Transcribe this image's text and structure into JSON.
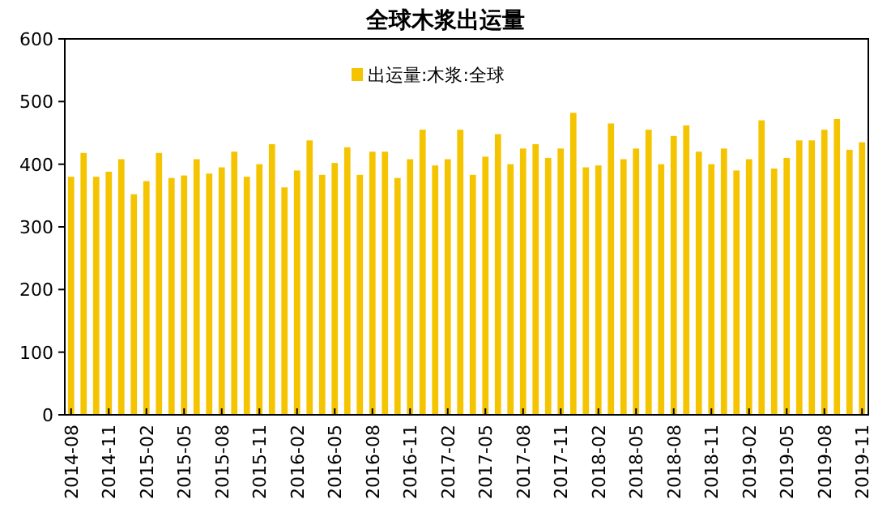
{
  "chart_data": {
    "type": "bar",
    "title": "全球木浆出运量",
    "categories": [
      "2014-08",
      null,
      null,
      "2014-11",
      null,
      null,
      "2015-02",
      null,
      null,
      "2015-05",
      null,
      null,
      "2015-08",
      null,
      null,
      "2015-11",
      null,
      null,
      "2016-02",
      null,
      null,
      "2016-05",
      null,
      null,
      "2016-08",
      null,
      null,
      "2016-11",
      null,
      null,
      "2017-02",
      null,
      null,
      "2017-05",
      null,
      null,
      "2017-08",
      null,
      null,
      "2017-11",
      null,
      null,
      "2018-02",
      null,
      null,
      "2018-05",
      null,
      null,
      "2018-08",
      null,
      null,
      "2018-11",
      null,
      null,
      "2019-02",
      null,
      null,
      "2019-05",
      null,
      null,
      "2019-08",
      null,
      null,
      "2019-11"
    ],
    "series": [
      {
        "name": "出运量:木浆:全球",
        "color": "#f5c400",
        "values": [
          380,
          418,
          380,
          388,
          408,
          352,
          373,
          418,
          378,
          382,
          408,
          385,
          395,
          420,
          380,
          400,
          432,
          363,
          390,
          438,
          383,
          402,
          427,
          383,
          420,
          420,
          378,
          408,
          455,
          398,
          408,
          455,
          383,
          412,
          448,
          400,
          425,
          432,
          410,
          425,
          482,
          395,
          398,
          465,
          408,
          425,
          455,
          400,
          445,
          462,
          420,
          400,
          425,
          390,
          408,
          470,
          393,
          410,
          438,
          438,
          455,
          472,
          423,
          435
        ]
      }
    ],
    "ylim": [
      0,
      600
    ],
    "yticks": [
      0,
      100,
      200,
      300,
      400,
      500,
      600
    ],
    "grid": false,
    "legend": "top"
  }
}
